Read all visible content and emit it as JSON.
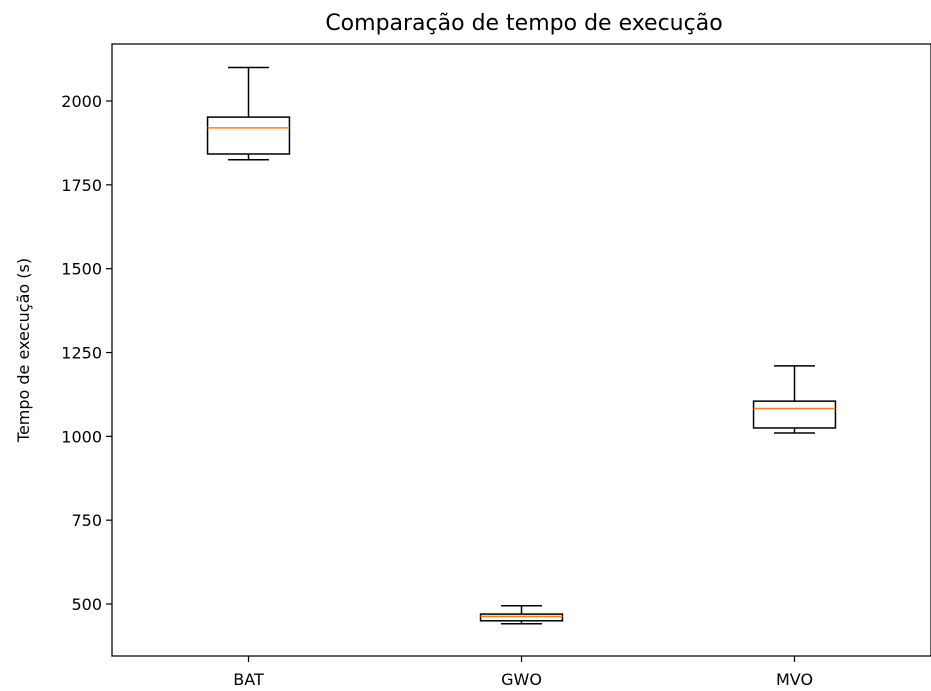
{
  "chart_data": {
    "type": "box",
    "title": "Comparação de tempo de execução",
    "xlabel": "",
    "ylabel": "Tempo de execução (s)",
    "ylim": [
      345,
      2170
    ],
    "yticks": [
      500,
      750,
      1000,
      1250,
      1500,
      1750,
      2000
    ],
    "categories": [
      "BAT",
      "GWO",
      "MVO"
    ],
    "boxes": [
      {
        "label": "BAT",
        "whisker_low": 1825,
        "q1": 1842,
        "median": 1920,
        "q3": 1952,
        "whisker_high": 2100
      },
      {
        "label": "GWO",
        "whisker_low": 441,
        "q1": 450,
        "median": 463,
        "q3": 470,
        "whisker_high": 495
      },
      {
        "label": "MVO",
        "whisker_low": 1010,
        "q1": 1025,
        "median": 1083,
        "q3": 1105,
        "whisker_high": 1210
      }
    ],
    "colors": {
      "box": "#000000",
      "median": "#ff7f0e"
    },
    "grid": false,
    "legend": "none"
  }
}
